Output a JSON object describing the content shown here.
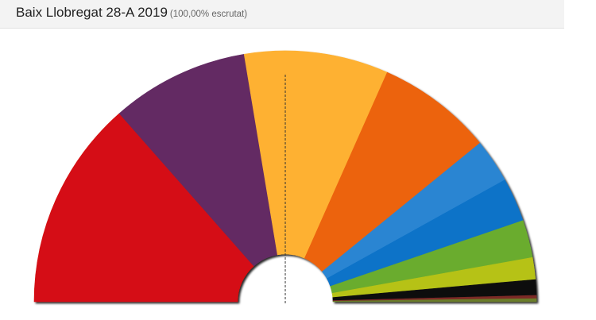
{
  "header": {
    "title": "Baix Llobregat 28-A 2019",
    "subtitle": "(100,00% escrutat)"
  },
  "chart_data": {
    "type": "pie",
    "variant": "hemicycle",
    "title": "Baix Llobregat 28-A 2019",
    "subtitle": "(100,00% escrutat)",
    "slices": [
      {
        "value": 33.5,
        "color": "#d50f12"
      },
      {
        "value": 22.0,
        "color": "#632c63"
      },
      {
        "value": 23.0,
        "color": "#feb133"
      },
      {
        "value": 18.5,
        "color": "#ec6310"
      },
      {
        "value": 7.0,
        "color": "#2b85d2"
      },
      {
        "value": 7.0,
        "color": "#0a73c8"
      },
      {
        "value": 6.0,
        "color": "#6aac2f"
      },
      {
        "value": 3.5,
        "color": "#b6c217"
      },
      {
        "value": 2.5,
        "color": "#111111"
      },
      {
        "value": 0.5,
        "color": "#7b2a26"
      },
      {
        "value": 0.5,
        "color": "#6b7d2a"
      }
    ],
    "majority_line": true
  }
}
